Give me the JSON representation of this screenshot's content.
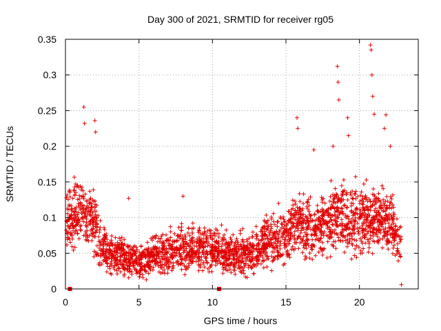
{
  "chart_data": {
    "type": "scatter",
    "title": "Day 300 of 2021, SRMTID for receiver rg05",
    "xlabel": "GPS time / hours",
    "ylabel": "SRMTID / TECUs",
    "xlim": [
      0,
      24
    ],
    "ylim": [
      0,
      0.35
    ],
    "x_ticks": [
      0,
      5,
      10,
      15,
      20
    ],
    "x_tick_labels": [
      "0",
      "5",
      "10",
      "15",
      "20"
    ],
    "y_ticks": [
      0,
      0.05,
      0.1,
      0.15,
      0.2,
      0.25,
      0.3,
      0.35
    ],
    "y_tick_labels": [
      "0",
      "0.05",
      "0.1",
      "0.15",
      "0.2",
      "0.25",
      "0.3",
      "0.35"
    ],
    "grid": true,
    "marker": "+",
    "color": "#e00000",
    "gap_markers_x": [
      0.3,
      10.45
    ],
    "series": [
      {
        "name": "SRMTID",
        "trend_hour": [
          0,
          0.5,
          1,
          1.5,
          2,
          2.5,
          3,
          3.5,
          4,
          4.5,
          5,
          5.5,
          6,
          6.5,
          7,
          7.5,
          8,
          8.5,
          9,
          9.5,
          10,
          10.5,
          11,
          11.5,
          12,
          12.5,
          13,
          13.5,
          14,
          14.5,
          15,
          15.5,
          16,
          16.5,
          17,
          17.5,
          18,
          18.5,
          19,
          19.5,
          20,
          20.5,
          21,
          21.5,
          22,
          22.5,
          23
        ],
        "trend_value": [
          0.1,
          0.1,
          0.11,
          0.1,
          0.09,
          0.06,
          0.05,
          0.045,
          0.045,
          0.04,
          0.035,
          0.04,
          0.045,
          0.05,
          0.05,
          0.055,
          0.055,
          0.055,
          0.06,
          0.055,
          0.055,
          0.055,
          0.05,
          0.045,
          0.05,
          0.05,
          0.055,
          0.065,
          0.07,
          0.06,
          0.07,
          0.095,
          0.09,
          0.085,
          0.08,
          0.09,
          0.1,
          0.105,
          0.1,
          0.1,
          0.095,
          0.1,
          0.1,
          0.1,
          0.095,
          0.075,
          0.05
        ],
        "spikes": [
          {
            "x": 1.25,
            "y": 0.255
          },
          {
            "x": 1.3,
            "y": 0.232
          },
          {
            "x": 2.0,
            "y": 0.236
          },
          {
            "x": 2.05,
            "y": 0.22
          },
          {
            "x": 15.75,
            "y": 0.24
          },
          {
            "x": 15.8,
            "y": 0.225
          },
          {
            "x": 18.5,
            "y": 0.312
          },
          {
            "x": 18.55,
            "y": 0.29
          },
          {
            "x": 18.6,
            "y": 0.265
          },
          {
            "x": 19.2,
            "y": 0.24
          },
          {
            "x": 19.25,
            "y": 0.215
          },
          {
            "x": 20.75,
            "y": 0.342
          },
          {
            "x": 20.8,
            "y": 0.335
          },
          {
            "x": 20.85,
            "y": 0.3
          },
          {
            "x": 20.9,
            "y": 0.27
          },
          {
            "x": 21.0,
            "y": 0.245
          },
          {
            "x": 21.8,
            "y": 0.244
          },
          {
            "x": 21.7,
            "y": 0.225
          },
          {
            "x": 22.1,
            "y": 0.2
          },
          {
            "x": 4.3,
            "y": 0.127
          },
          {
            "x": 8.0,
            "y": 0.13
          },
          {
            "x": 14.5,
            "y": 0.12
          },
          {
            "x": 16.9,
            "y": 0.195
          },
          {
            "x": 18.2,
            "y": 0.2
          },
          {
            "x": 22.85,
            "y": 0.006
          }
        ]
      }
    ]
  }
}
